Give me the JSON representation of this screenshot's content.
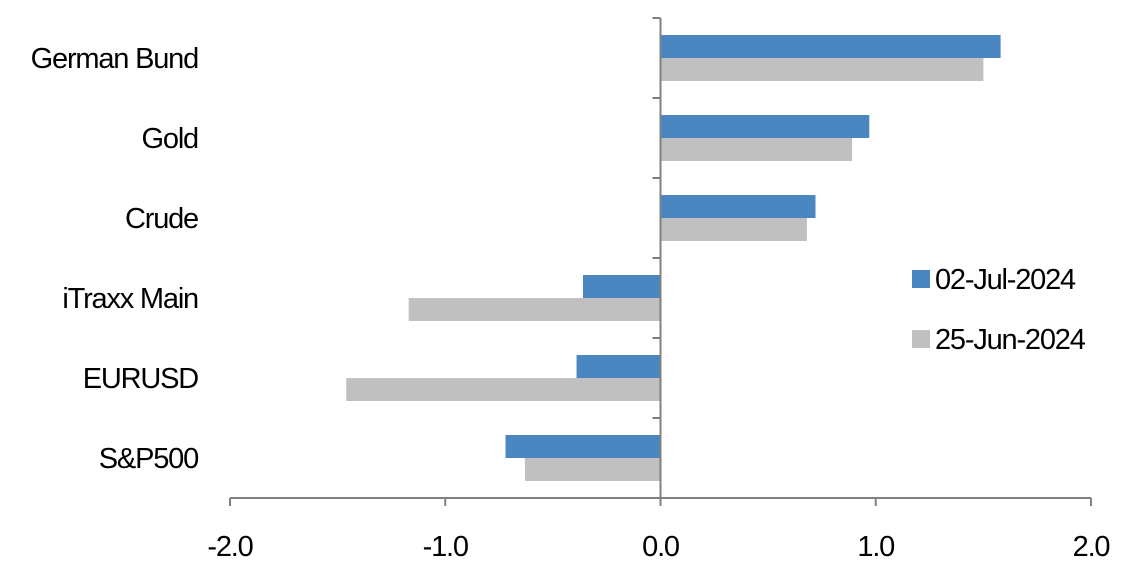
{
  "chart_data": {
    "type": "bar",
    "orientation": "horizontal",
    "categories": [
      "German Bund",
      "Gold",
      "Crude",
      "iTraxx Main",
      "EURUSD",
      "S&P500"
    ],
    "series": [
      {
        "name": "02-Jul-2024",
        "color": "#4a86c0",
        "values": [
          1.58,
          0.97,
          0.72,
          -0.36,
          -0.39,
          -0.72
        ]
      },
      {
        "name": "25-Jun-2024",
        "color": "#c0c0c0",
        "values": [
          1.5,
          0.89,
          0.68,
          -1.17,
          -1.46,
          -0.63
        ]
      }
    ],
    "xlim": [
      -2.0,
      2.0
    ],
    "xticks": [
      "-2.0",
      "-1.0",
      "0.0",
      "1.0",
      "2.0"
    ],
    "xtick_values": [
      -2,
      -1,
      0,
      1,
      2
    ],
    "grid": false,
    "legend": "right"
  }
}
